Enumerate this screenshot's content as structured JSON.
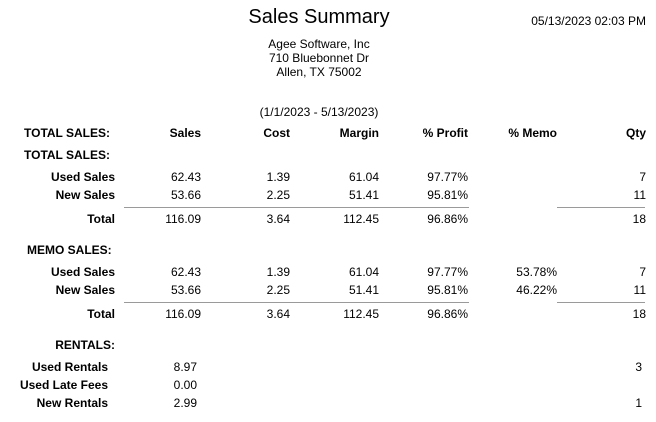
{
  "report": {
    "title": "Sales Summary",
    "datetime": "05/13/2023 02:03 PM",
    "company": "Agee Software, Inc",
    "address1": "710 Bluebonnet Dr",
    "address2": "Allen, TX  75002",
    "date_range": "(1/1/2023 - 5/13/2023)"
  },
  "headers": {
    "label": "TOTAL SALES:",
    "sales": "Sales",
    "cost": "Cost",
    "margin": "Margin",
    "profit": "% Profit",
    "memo": "% Memo",
    "qty": "Qty"
  },
  "total_sales": {
    "heading": "TOTAL SALES:",
    "rows": [
      {
        "label": "Used Sales",
        "sales": "62.43",
        "cost": "1.39",
        "margin": "61.04",
        "profit": "97.77%",
        "memo": "",
        "qty": "7"
      },
      {
        "label": "New Sales",
        "sales": "53.66",
        "cost": "2.25",
        "margin": "51.41",
        "profit": "95.81%",
        "memo": "",
        "qty": "11"
      }
    ],
    "total": {
      "label": "Total",
      "sales": "116.09",
      "cost": "3.64",
      "margin": "112.45",
      "profit": "96.86%",
      "qty": "18"
    }
  },
  "memo_sales": {
    "heading": "MEMO SALES:",
    "rows": [
      {
        "label": "Used Sales",
        "sales": "62.43",
        "cost": "1.39",
        "margin": "61.04",
        "profit": "97.77%",
        "memo": "53.78%",
        "qty": "7"
      },
      {
        "label": "New Sales",
        "sales": "53.66",
        "cost": "2.25",
        "margin": "51.41",
        "profit": "95.81%",
        "memo": "46.22%",
        "qty": "11"
      }
    ],
    "total": {
      "label": "Total",
      "sales": "116.09",
      "cost": "3.64",
      "margin": "112.45",
      "profit": "96.86%",
      "qty": "18"
    }
  },
  "rentals": {
    "heading": "RENTALS:",
    "rows": [
      {
        "label": "Used Rentals",
        "sales": "8.97",
        "qty": "3"
      },
      {
        "label": "Used Late Fees",
        "sales": "0.00",
        "qty": ""
      },
      {
        "label": "New Rentals",
        "sales": "2.99",
        "qty": "1"
      }
    ]
  }
}
